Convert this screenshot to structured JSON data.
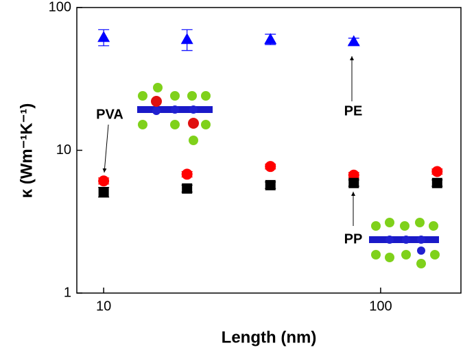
{
  "chart_data": {
    "type": "scatter",
    "x_label": "Length (nm)",
    "y_label": "κ (Wm⁻¹K⁻¹)",
    "xlog": true,
    "ylog": true,
    "xlim": [
      8,
      195
    ],
    "ylim": [
      1,
      100
    ],
    "xticks": [
      10,
      100
    ],
    "yticks": [
      1,
      10,
      100
    ],
    "series": [
      {
        "name": "PE",
        "color": "#0000ff",
        "marker": "triangle",
        "x": [
          10,
          20,
          40,
          80
        ],
        "values": [
          62,
          60,
          60,
          58
        ],
        "errors": [
          8,
          10,
          5,
          3
        ]
      },
      {
        "name": "PVA",
        "color": "#ff0000",
        "marker": "circle",
        "x": [
          10,
          20,
          40,
          80,
          160
        ],
        "values": [
          6.1,
          6.8,
          7.7,
          6.7,
          7.1
        ],
        "errors": [
          0.3,
          0.3,
          0.3,
          0.3,
          0.3
        ]
      },
      {
        "name": "PP",
        "color": "#000000",
        "marker": "square",
        "x": [
          10,
          20,
          40,
          80,
          160
        ],
        "values": [
          5.1,
          5.4,
          5.7,
          5.9,
          5.9
        ],
        "errors": [
          0.4,
          0.3,
          0.3,
          0.3,
          0.3
        ]
      }
    ],
    "annotations": [
      "PVA",
      "PE",
      "PP"
    ]
  }
}
